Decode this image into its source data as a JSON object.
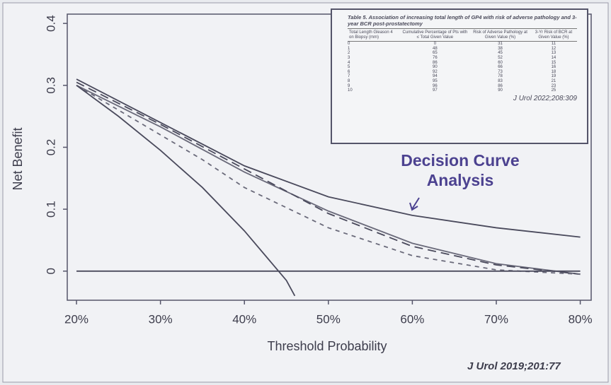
{
  "chart_data": {
    "type": "line",
    "xlabel": "Threshold Probability",
    "ylabel": "Net Benefit",
    "annotation": "Decision Curve Analysis",
    "source": "J Urol 2019;201:77",
    "xlim": [
      0.189,
      0.813
    ],
    "ylim": [
      -0.047,
      0.415
    ],
    "xticks": [
      {
        "value": 0.2,
        "label": "20%"
      },
      {
        "value": 0.3,
        "label": "30%"
      },
      {
        "value": 0.4,
        "label": "40%"
      },
      {
        "value": 0.5,
        "label": "50%"
      },
      {
        "value": 0.6,
        "label": "60%"
      },
      {
        "value": 0.7,
        "label": "70%"
      },
      {
        "value": 0.8,
        "label": "80%"
      }
    ],
    "yticks": [
      0,
      0.1,
      0.2,
      0.3,
      0.4
    ],
    "series": [
      {
        "color": "#4a4a5c",
        "line_style": "solid",
        "x": [
          0.2,
          0.3,
          0.4,
          0.5,
          0.6,
          0.7,
          0.8
        ],
        "values": [
          0.31,
          0.24,
          0.17,
          0.12,
          0.09,
          0.07,
          0.055
        ]
      },
      {
        "color": "#6a6a7a",
        "line_style": "solid",
        "x": [
          0.2,
          0.3,
          0.4,
          0.5,
          0.6,
          0.7,
          0.8
        ],
        "values": [
          0.3,
          0.233,
          0.16,
          0.097,
          0.045,
          0.012,
          -0.005
        ]
      },
      {
        "color": "#4a4a5c",
        "line_style": "long-dash",
        "x": [
          0.2,
          0.3,
          0.4,
          0.5,
          0.6,
          0.7,
          0.8
        ],
        "values": [
          0.305,
          0.237,
          0.165,
          0.093,
          0.04,
          0.01,
          -0.005
        ]
      },
      {
        "color": "#6a6a7a",
        "line_style": "short-dash",
        "x": [
          0.2,
          0.3,
          0.35,
          0.4,
          0.5,
          0.6,
          0.7,
          0.8
        ],
        "values": [
          0.3,
          0.22,
          0.18,
          0.135,
          0.07,
          0.025,
          0.002,
          -0.005
        ]
      },
      {
        "color": "#4a4a5c",
        "line_style": "solid",
        "x": [
          0.2,
          0.25,
          0.3,
          0.35,
          0.4,
          0.45,
          0.46
        ],
        "values": [
          0.3,
          0.25,
          0.195,
          0.135,
          0.065,
          -0.015,
          -0.04
        ]
      },
      {
        "color": "#4a4a5c",
        "line_style": "solid",
        "x": [
          0.2,
          0.8
        ],
        "values": [
          0,
          0
        ]
      }
    ],
    "inset_table": {
      "title": "Table 5. Association of increasing total length of GP4 with risk of adverse pathology and 3-year BCR post-prostatectomy",
      "headers": [
        "Total Length Gleason 4 on Biopsy (mm)",
        "Cumulative Percentage of Pts with ≤ Total Given Value",
        "Risk of Adverse Pathology at Given Value (%)",
        "3-Yr Risk of BCR at Given Value (%)"
      ],
      "rows": [
        [
          "0",
          "0",
          "31",
          "11"
        ],
        [
          "1",
          "48",
          "38",
          "12"
        ],
        [
          "2",
          "65",
          "45",
          "13"
        ],
        [
          "3",
          "76",
          "52",
          "14"
        ],
        [
          "4",
          "86",
          "60",
          "15"
        ],
        [
          "5",
          "90",
          "66",
          "16"
        ],
        [
          "6",
          "92",
          "73",
          "18"
        ],
        [
          "7",
          "94",
          "78",
          "19"
        ],
        [
          "8",
          "95",
          "83",
          "21"
        ],
        [
          "9",
          "96",
          "86",
          "23"
        ],
        [
          "10",
          "97",
          "90",
          "25"
        ]
      ],
      "source": "J Urol 2022;208:309"
    }
  }
}
